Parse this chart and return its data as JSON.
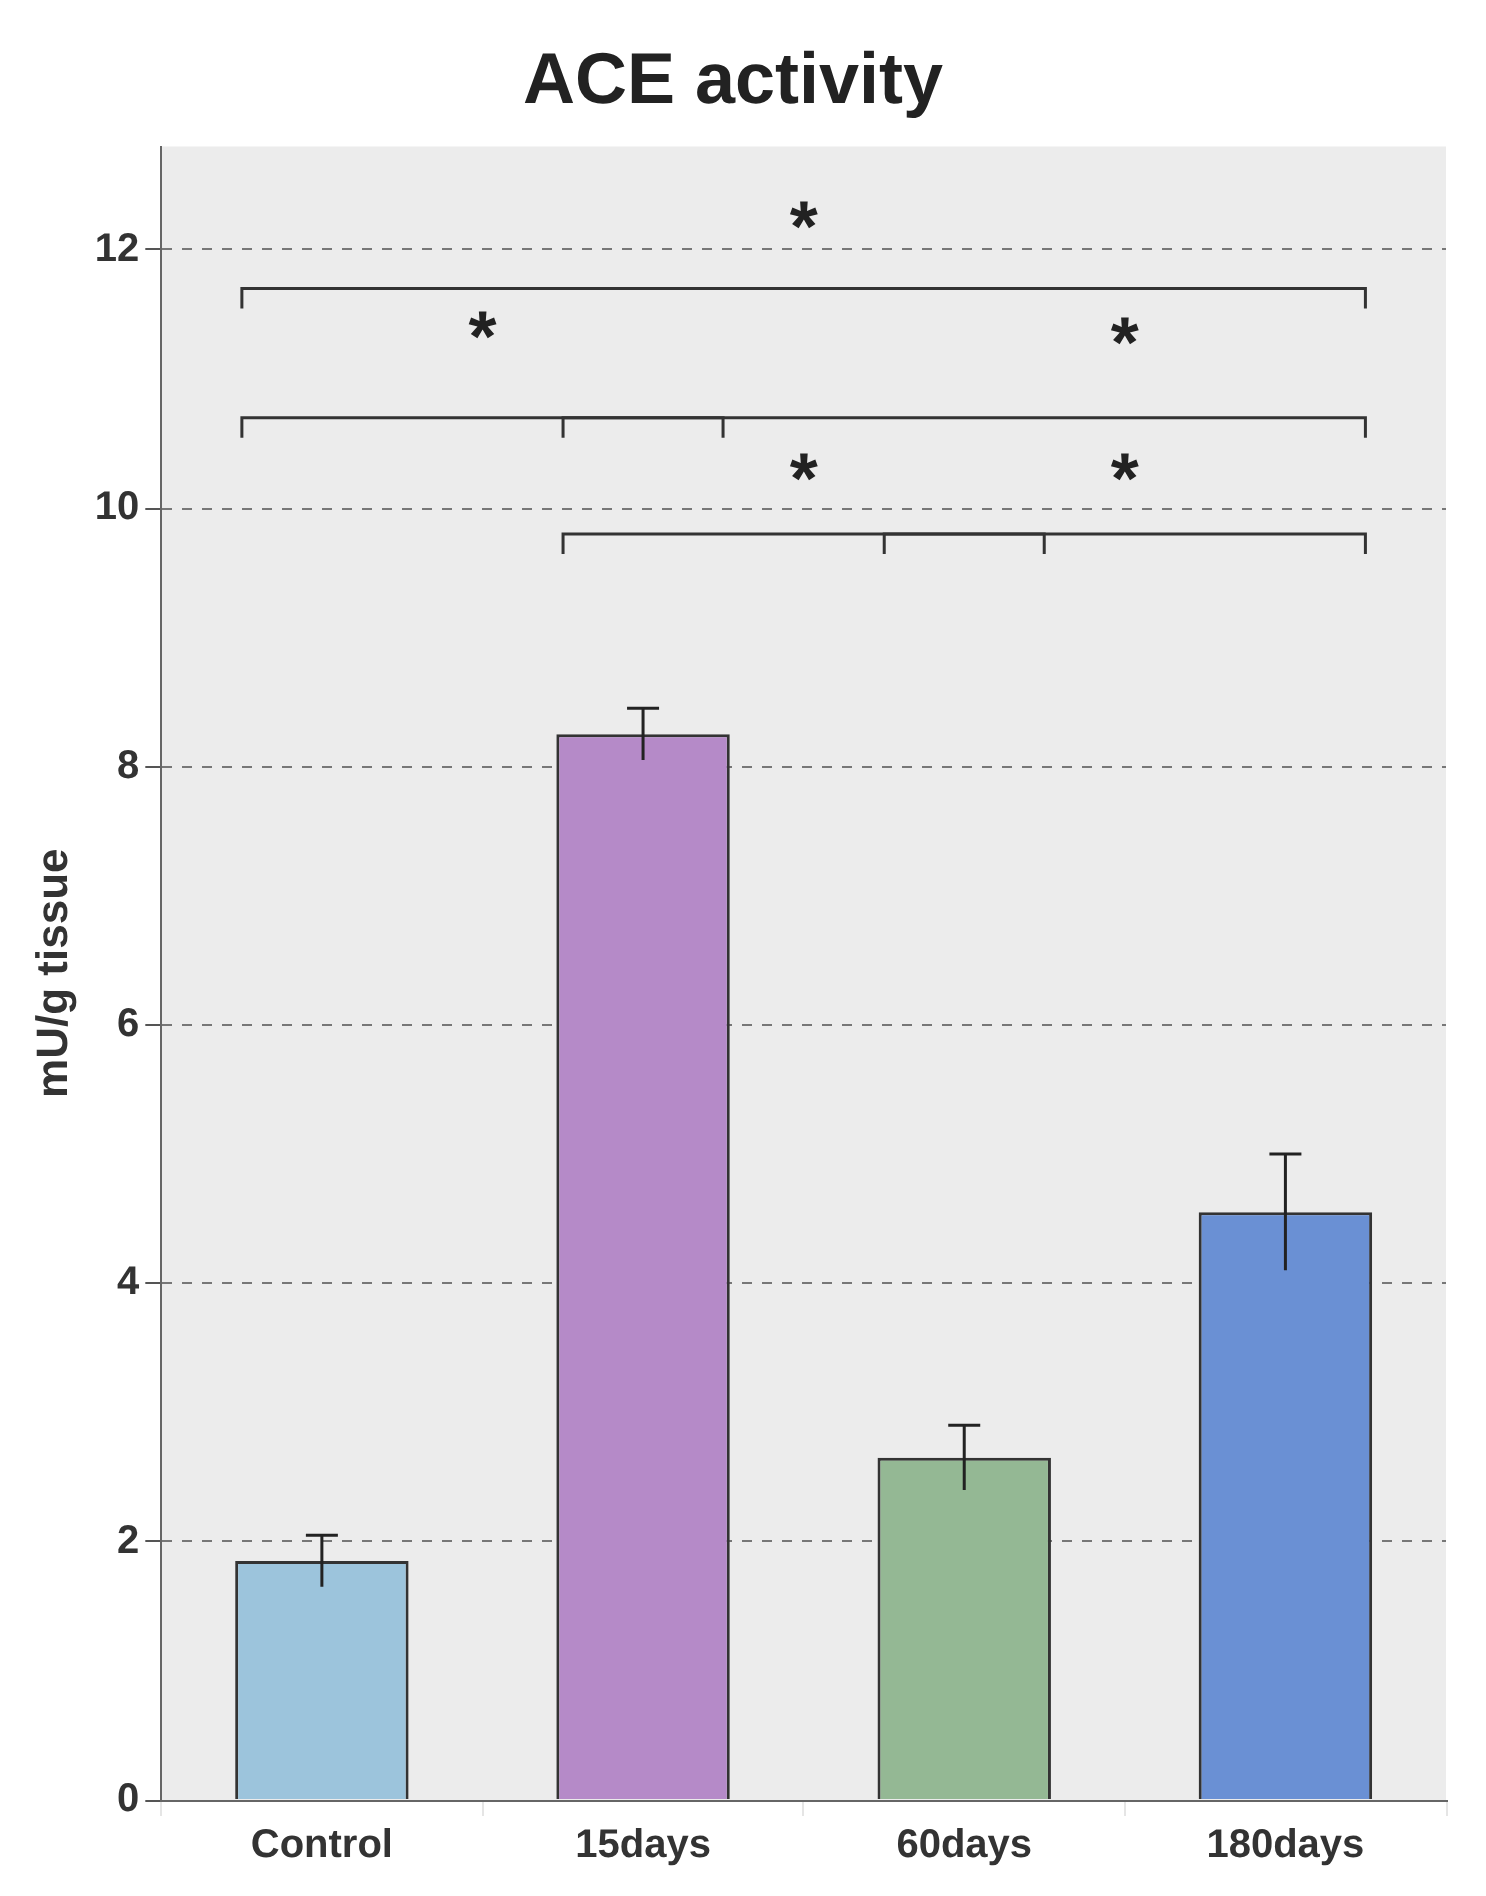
{
  "chart_data": {
    "type": "bar",
    "title": "ACE activity",
    "ylabel": "mU/g tissue",
    "categories": [
      "Control",
      "15days",
      "60days",
      "180days"
    ],
    "values": [
      1.85,
      8.25,
      2.65,
      4.55
    ],
    "errors": [
      0.2,
      0.2,
      0.25,
      0.45
    ],
    "colors": [
      "#9cc4dc",
      "#b58ac8",
      "#94b894",
      "#6a90d4"
    ],
    "ylim": [
      0,
      12.8
    ],
    "yticks": [
      0,
      2,
      4,
      6,
      8,
      10,
      12
    ],
    "grid": "y",
    "legend": false,
    "annotations": [
      "*",
      "*",
      "*",
      "*",
      "*"
    ]
  }
}
